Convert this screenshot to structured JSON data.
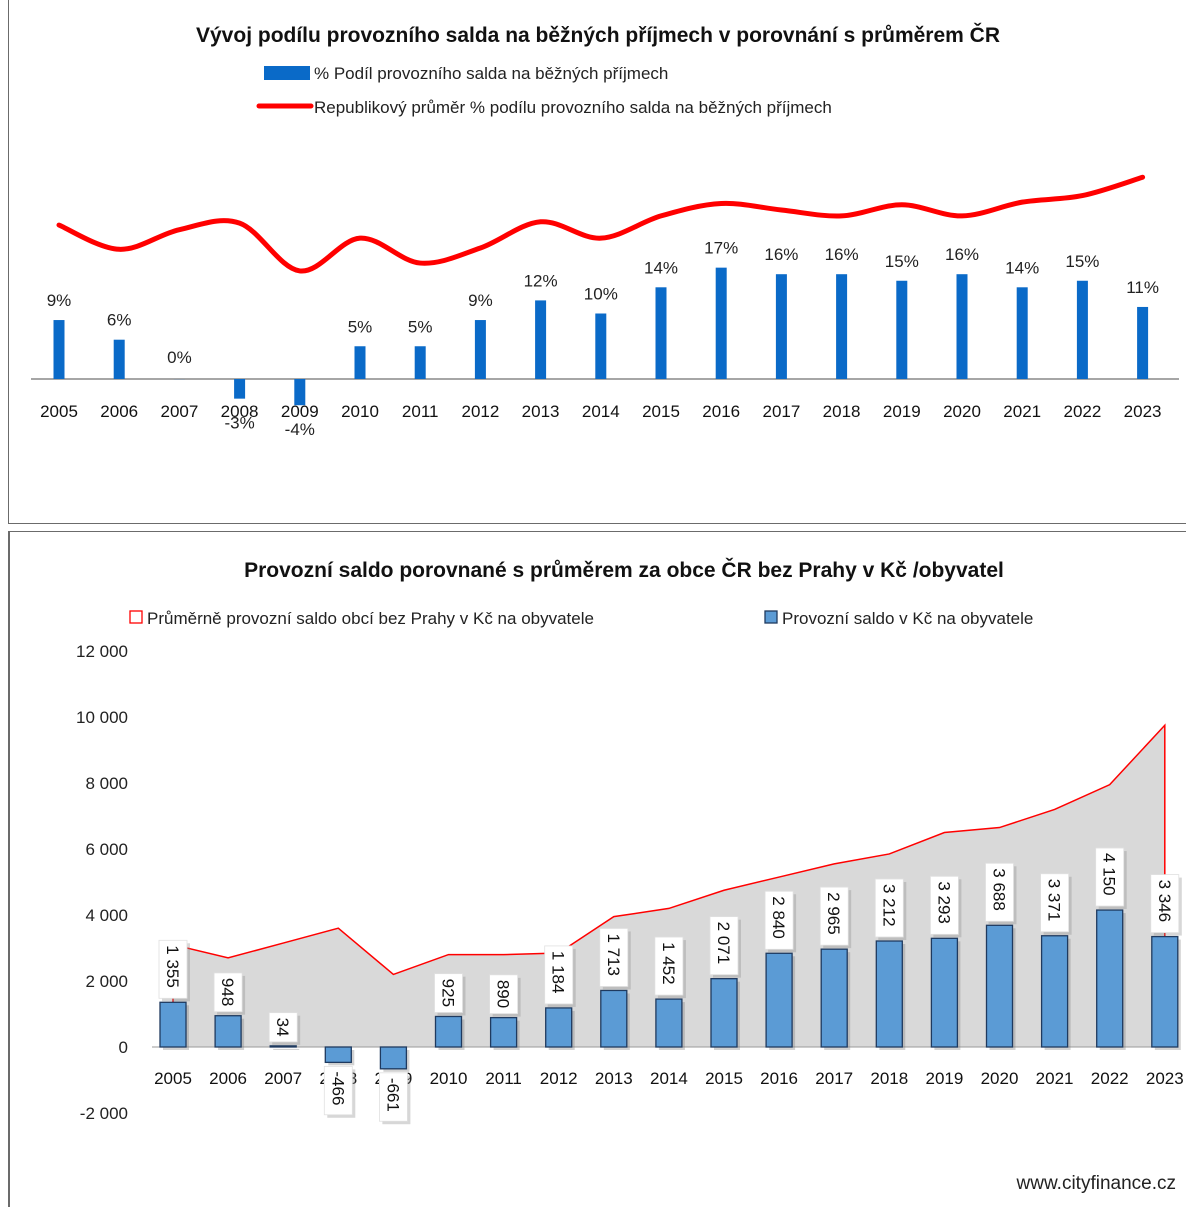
{
  "chart_data": [
    {
      "type": "bar",
      "title": "Vývoj podílu provozního salda na běžných příjmech v porovnání s průměrem ČR",
      "categories": [
        "2005",
        "2006",
        "2007",
        "2008",
        "2009",
        "2010",
        "2011",
        "2012",
        "2013",
        "2014",
        "2015",
        "2016",
        "2017",
        "2018",
        "2019",
        "2020",
        "2021",
        "2022",
        "2023"
      ],
      "series": [
        {
          "name": "% Podíl provozního salda na běžných příjmech",
          "kind": "bar",
          "color": "#0a6ac8",
          "values": [
            9,
            6,
            0,
            -3,
            -4,
            5,
            5,
            9,
            12,
            10,
            14,
            17,
            16,
            16,
            15,
            16,
            14,
            15,
            11
          ],
          "labels": [
            "9%",
            "6%",
            "0%",
            "-3%",
            "-4%",
            "5%",
            "5%",
            "9%",
            "12%",
            "10%",
            "14%",
            "17%",
            "16%",
            "16%",
            "15%",
            "16%",
            "14%",
            "15%",
            "11%"
          ]
        },
        {
          "name": "Republikový průměr % podílu provozního salda na běžných příjmech",
          "kind": "line",
          "color": "#ff0000",
          "values": [
            23.5,
            19.8,
            22.8,
            23.8,
            16.5,
            21.5,
            17.7,
            20.0,
            24.0,
            21.5,
            24.9,
            26.8,
            25.8,
            24.9,
            26.6,
            24.9,
            27.0,
            28.0,
            30.8
          ]
        }
      ],
      "ylim": [
        -5,
        33
      ],
      "grid": false,
      "legend": "top"
    },
    {
      "type": "bar",
      "title": "Provozní saldo porovnané s průměrem za obce ČR bez Prahy v Kč /obyvatel",
      "categories": [
        "2005",
        "2006",
        "2007",
        "2008",
        "2009",
        "2010",
        "2011",
        "2012",
        "2013",
        "2014",
        "2015",
        "2016",
        "2017",
        "2018",
        "2019",
        "2020",
        "2021",
        "2022",
        "2023"
      ],
      "series": [
        {
          "name": "Průměrně provozní saldo obcí bez Prahy v Kč na obyvatele",
          "kind": "area",
          "color": "#ff0000",
          "fill": "#d9d9d9",
          "values": [
            3100,
            2700,
            3150,
            3600,
            2200,
            2800,
            2800,
            2850,
            3950,
            4200,
            4750,
            5150,
            5550,
            5850,
            6500,
            6650,
            7200,
            7950,
            9750
          ]
        },
        {
          "name": "Provozní saldo v Kč na obyvatele",
          "kind": "bar",
          "color": "#5b9bd5",
          "values": [
            1355,
            948,
            34,
            -466,
            -661,
            925,
            890,
            1184,
            1713,
            1452,
            2071,
            2840,
            2965,
            3212,
            3293,
            3688,
            3371,
            4150,
            3346
          ],
          "labels": [
            "1 355",
            "948",
            "34",
            "-466",
            "-661",
            "925",
            "890",
            "1 184",
            "1 713",
            "1 452",
            "2 071",
            "2 840",
            "2 965",
            "3 212",
            "3 293",
            "3 688",
            "3 371",
            "4 150",
            "3 346"
          ]
        }
      ],
      "yticks": [
        "12 000",
        "10 000",
        "8 000",
        "6 000",
        "4 000",
        "2 000",
        "0",
        "-2 000"
      ],
      "ylim": [
        -2000,
        12000
      ],
      "grid": false,
      "legend": "top"
    }
  ],
  "footer": {
    "source": "www.cityfinance.cz"
  }
}
